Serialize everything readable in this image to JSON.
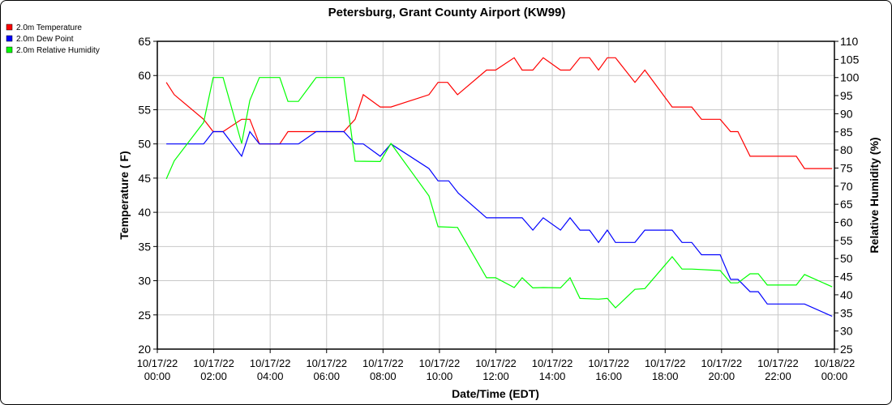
{
  "chart_data": {
    "type": "line",
    "title": "Petersburg, Grant County Airport (KW99)",
    "xlabel": "Date/Time (EDT)",
    "ylabel": "Temperature ( F)",
    "y2label": "Relative Humidity (%)",
    "xlim_hours": [
      0,
      24
    ],
    "ylim": [
      20,
      65
    ],
    "y2lim": [
      25,
      110
    ],
    "yticks": [
      20,
      25,
      30,
      35,
      40,
      45,
      50,
      55,
      60,
      65
    ],
    "y2ticks": [
      25,
      30,
      35,
      40,
      45,
      50,
      55,
      60,
      65,
      70,
      75,
      80,
      85,
      90,
      95,
      100,
      105,
      110
    ],
    "xticks": [
      {
        "h": 0,
        "date": "10/17/22",
        "time": "00:00"
      },
      {
        "h": 2,
        "date": "10/17/22",
        "time": "02:00"
      },
      {
        "h": 4,
        "date": "10/17/22",
        "time": "04:00"
      },
      {
        "h": 6,
        "date": "10/17/22",
        "time": "06:00"
      },
      {
        "h": 8,
        "date": "10/17/22",
        "time": "08:00"
      },
      {
        "h": 10,
        "date": "10/17/22",
        "time": "10:00"
      },
      {
        "h": 12,
        "date": "10/17/22",
        "time": "12:00"
      },
      {
        "h": 14,
        "date": "10/17/22",
        "time": "14:00"
      },
      {
        "h": 16,
        "date": "10/17/22",
        "time": "16:00"
      },
      {
        "h": 18,
        "date": "10/17/22",
        "time": "18:00"
      },
      {
        "h": 20,
        "date": "10/17/22",
        "time": "20:00"
      },
      {
        "h": 22,
        "date": "10/17/22",
        "time": "22:00"
      },
      {
        "h": 24,
        "date": "10/18/22",
        "time": "00:00"
      }
    ],
    "grid": true,
    "legend_position": "top-left",
    "series": [
      {
        "name": "2.0m Temperature",
        "color": "#ff0000",
        "axis": "left",
        "points": [
          [
            0.32,
            59
          ],
          [
            0.6,
            57.2
          ],
          [
            1.64,
            53.6
          ],
          [
            1.98,
            51.8
          ],
          [
            2.33,
            51.8
          ],
          [
            2.99,
            53.6
          ],
          [
            3.28,
            53.6
          ],
          [
            3.62,
            50
          ],
          [
            4.34,
            50
          ],
          [
            4.63,
            51.8
          ],
          [
            5.63,
            51.8
          ],
          [
            6.61,
            51.8
          ],
          [
            7.01,
            53.6
          ],
          [
            7.3,
            57.2
          ],
          [
            7.9,
            55.4
          ],
          [
            8.28,
            55.4
          ],
          [
            9.63,
            57.2
          ],
          [
            9.95,
            59
          ],
          [
            10.29,
            59
          ],
          [
            10.64,
            57.2
          ],
          [
            11.67,
            60.8
          ],
          [
            11.99,
            60.8
          ],
          [
            12.65,
            62.6
          ],
          [
            12.93,
            60.8
          ],
          [
            13.31,
            60.8
          ],
          [
            13.68,
            62.6
          ],
          [
            14.29,
            60.8
          ],
          [
            14.63,
            60.8
          ],
          [
            14.98,
            62.6
          ],
          [
            15.32,
            62.6
          ],
          [
            15.64,
            60.8
          ],
          [
            15.95,
            62.6
          ],
          [
            16.24,
            62.6
          ],
          [
            16.93,
            59
          ],
          [
            17.28,
            60.8
          ],
          [
            18.25,
            55.4
          ],
          [
            18.94,
            55.4
          ],
          [
            19.29,
            53.6
          ],
          [
            19.95,
            53.6
          ],
          [
            20.32,
            51.8
          ],
          [
            20.58,
            51.8
          ],
          [
            21.01,
            48.2
          ],
          [
            22.65,
            48.2
          ],
          [
            22.94,
            46.4
          ],
          [
            23.92,
            46.4
          ]
        ]
      },
      {
        "name": "2.0m Dew Point",
        "color": "#0000ff",
        "axis": "left",
        "points": [
          [
            0.32,
            50
          ],
          [
            1.64,
            50
          ],
          [
            1.98,
            51.8
          ],
          [
            2.33,
            51.8
          ],
          [
            2.99,
            48.2
          ],
          [
            3.28,
            51.8
          ],
          [
            3.62,
            50
          ],
          [
            5.0,
            50
          ],
          [
            5.63,
            51.8
          ],
          [
            6.61,
            51.8
          ],
          [
            7.01,
            50
          ],
          [
            7.3,
            50
          ],
          [
            7.9,
            48.2
          ],
          [
            8.28,
            50
          ],
          [
            9.63,
            46.4
          ],
          [
            9.95,
            44.6
          ],
          [
            10.33,
            44.6
          ],
          [
            10.67,
            42.8
          ],
          [
            11.67,
            39.2
          ],
          [
            12.93,
            39.2
          ],
          [
            13.31,
            37.4
          ],
          [
            13.68,
            39.2
          ],
          [
            14.29,
            37.4
          ],
          [
            14.63,
            39.2
          ],
          [
            14.98,
            37.4
          ],
          [
            15.32,
            37.4
          ],
          [
            15.64,
            35.6
          ],
          [
            15.95,
            37.4
          ],
          [
            16.24,
            35.6
          ],
          [
            16.93,
            35.6
          ],
          [
            17.28,
            37.4
          ],
          [
            18.25,
            37.4
          ],
          [
            18.6,
            35.6
          ],
          [
            18.94,
            35.6
          ],
          [
            19.29,
            33.8
          ],
          [
            19.95,
            33.8
          ],
          [
            20.32,
            30.2
          ],
          [
            20.58,
            30.2
          ],
          [
            21.01,
            28.4
          ],
          [
            21.3,
            28.4
          ],
          [
            21.62,
            26.6
          ],
          [
            22.94,
            26.6
          ],
          [
            23.92,
            24.8
          ]
        ]
      },
      {
        "name": "2.0m Relative Humidity",
        "color": "#00ff00",
        "axis": "right",
        "points": [
          [
            0.32,
            72
          ],
          [
            0.6,
            77
          ],
          [
            1.64,
            87.6
          ],
          [
            1.98,
            100
          ],
          [
            2.33,
            100
          ],
          [
            2.99,
            81.8
          ],
          [
            3.28,
            93.7
          ],
          [
            3.62,
            100
          ],
          [
            4.34,
            100
          ],
          [
            4.63,
            93.4
          ],
          [
            5.0,
            93.4
          ],
          [
            5.63,
            100
          ],
          [
            6.61,
            100
          ],
          [
            7.01,
            76.9
          ],
          [
            7.9,
            76.8
          ],
          [
            8.28,
            81.8
          ],
          [
            9.63,
            67.3
          ],
          [
            9.95,
            58.8
          ],
          [
            10.64,
            58.6
          ],
          [
            11.67,
            44.7
          ],
          [
            11.99,
            44.7
          ],
          [
            12.65,
            42
          ],
          [
            12.93,
            44.7
          ],
          [
            13.31,
            41.9
          ],
          [
            13.68,
            42
          ],
          [
            14.29,
            41.9
          ],
          [
            14.63,
            44.7
          ],
          [
            14.98,
            39
          ],
          [
            15.64,
            38.8
          ],
          [
            15.95,
            39
          ],
          [
            16.24,
            36.4
          ],
          [
            16.93,
            41.5
          ],
          [
            17.28,
            41.7
          ],
          [
            18.25,
            50.5
          ],
          [
            18.6,
            47.1
          ],
          [
            18.94,
            47.1
          ],
          [
            19.95,
            46.7
          ],
          [
            20.32,
            43.3
          ],
          [
            20.58,
            43.3
          ],
          [
            21.01,
            45.8
          ],
          [
            21.3,
            45.8
          ],
          [
            21.62,
            42.7
          ],
          [
            22.65,
            42.7
          ],
          [
            22.94,
            45.6
          ],
          [
            23.92,
            42.2
          ]
        ]
      }
    ]
  }
}
